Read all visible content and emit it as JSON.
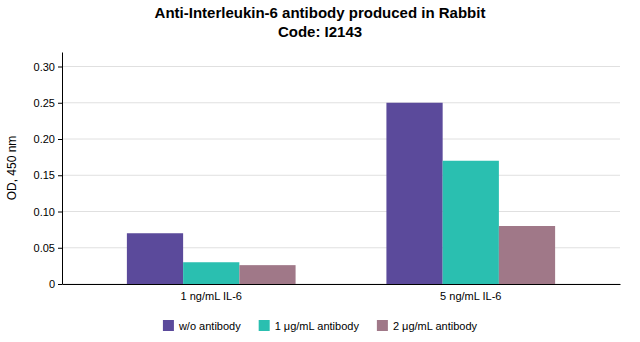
{
  "chart_data": {
    "type": "bar",
    "title": "Anti-Interleukin-6 antibody produced in Rabbit",
    "subtitle": "Code: I2143",
    "categories": [
      "1 ng/mL IL-6",
      "5 ng/mL IL-6"
    ],
    "series": [
      {
        "name": "w/o antibody",
        "color": "#5b4a9b",
        "values": [
          0.07,
          0.25
        ]
      },
      {
        "name": "1 μg/mL antibody",
        "color": "#2abfb0",
        "values": [
          0.03,
          0.17
        ]
      },
      {
        "name": "2 μg/mL antibody",
        "color": "#a07888",
        "values": [
          0.026,
          0.08
        ]
      }
    ],
    "ylabel": "OD, 450 nm",
    "ylim": [
      0,
      0.32
    ],
    "yticks": [
      0,
      0.05,
      {
        "value": 0.1,
        "label": "0.10"
      },
      0.15,
      {
        "value": 0.2,
        "label": "0.20"
      },
      0.25,
      {
        "value": 0.3,
        "label": "0.30"
      }
    ],
    "grid": true,
    "legend": "bottom"
  }
}
